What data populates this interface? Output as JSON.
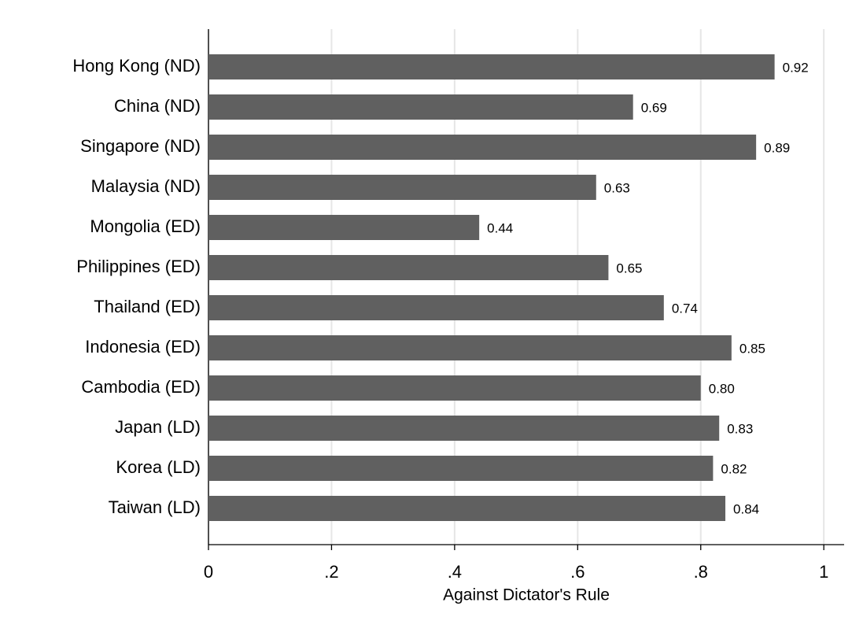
{
  "chart_data": {
    "type": "barh",
    "x_label": "Against Dictator's Rule",
    "categories": [
      "Hong Kong (ND)",
      "China (ND)",
      "Singapore (ND)",
      "Malaysia (ND)",
      "Mongolia (ED)",
      "Philippines (ED)",
      "Thailand (ED)",
      "Indonesia (ED)",
      "Cambodia (ED)",
      "Japan (LD)",
      "Korea (LD)",
      "Taiwan (LD)"
    ],
    "values": [
      0.92,
      0.69,
      0.89,
      0.63,
      0.44,
      0.65,
      0.74,
      0.85,
      0.8,
      0.83,
      0.82,
      0.84
    ],
    "value_labels": [
      "0.92",
      "0.69",
      "0.89",
      "0.63",
      "0.44",
      "0.65",
      "0.74",
      "0.85",
      "0.80",
      "0.83",
      "0.82",
      "0.84"
    ],
    "color": "#606060",
    "xlim": [
      0,
      1.033
    ],
    "xticks": [
      0,
      {
        "value": 0.2,
        "label": ".2"
      },
      {
        "value": 0.4,
        "label": ".4"
      },
      {
        "value": 0.6,
        "label": ".6"
      },
      {
        "value": 0.8,
        "label": ".8"
      },
      1
    ],
    "grid": true
  }
}
